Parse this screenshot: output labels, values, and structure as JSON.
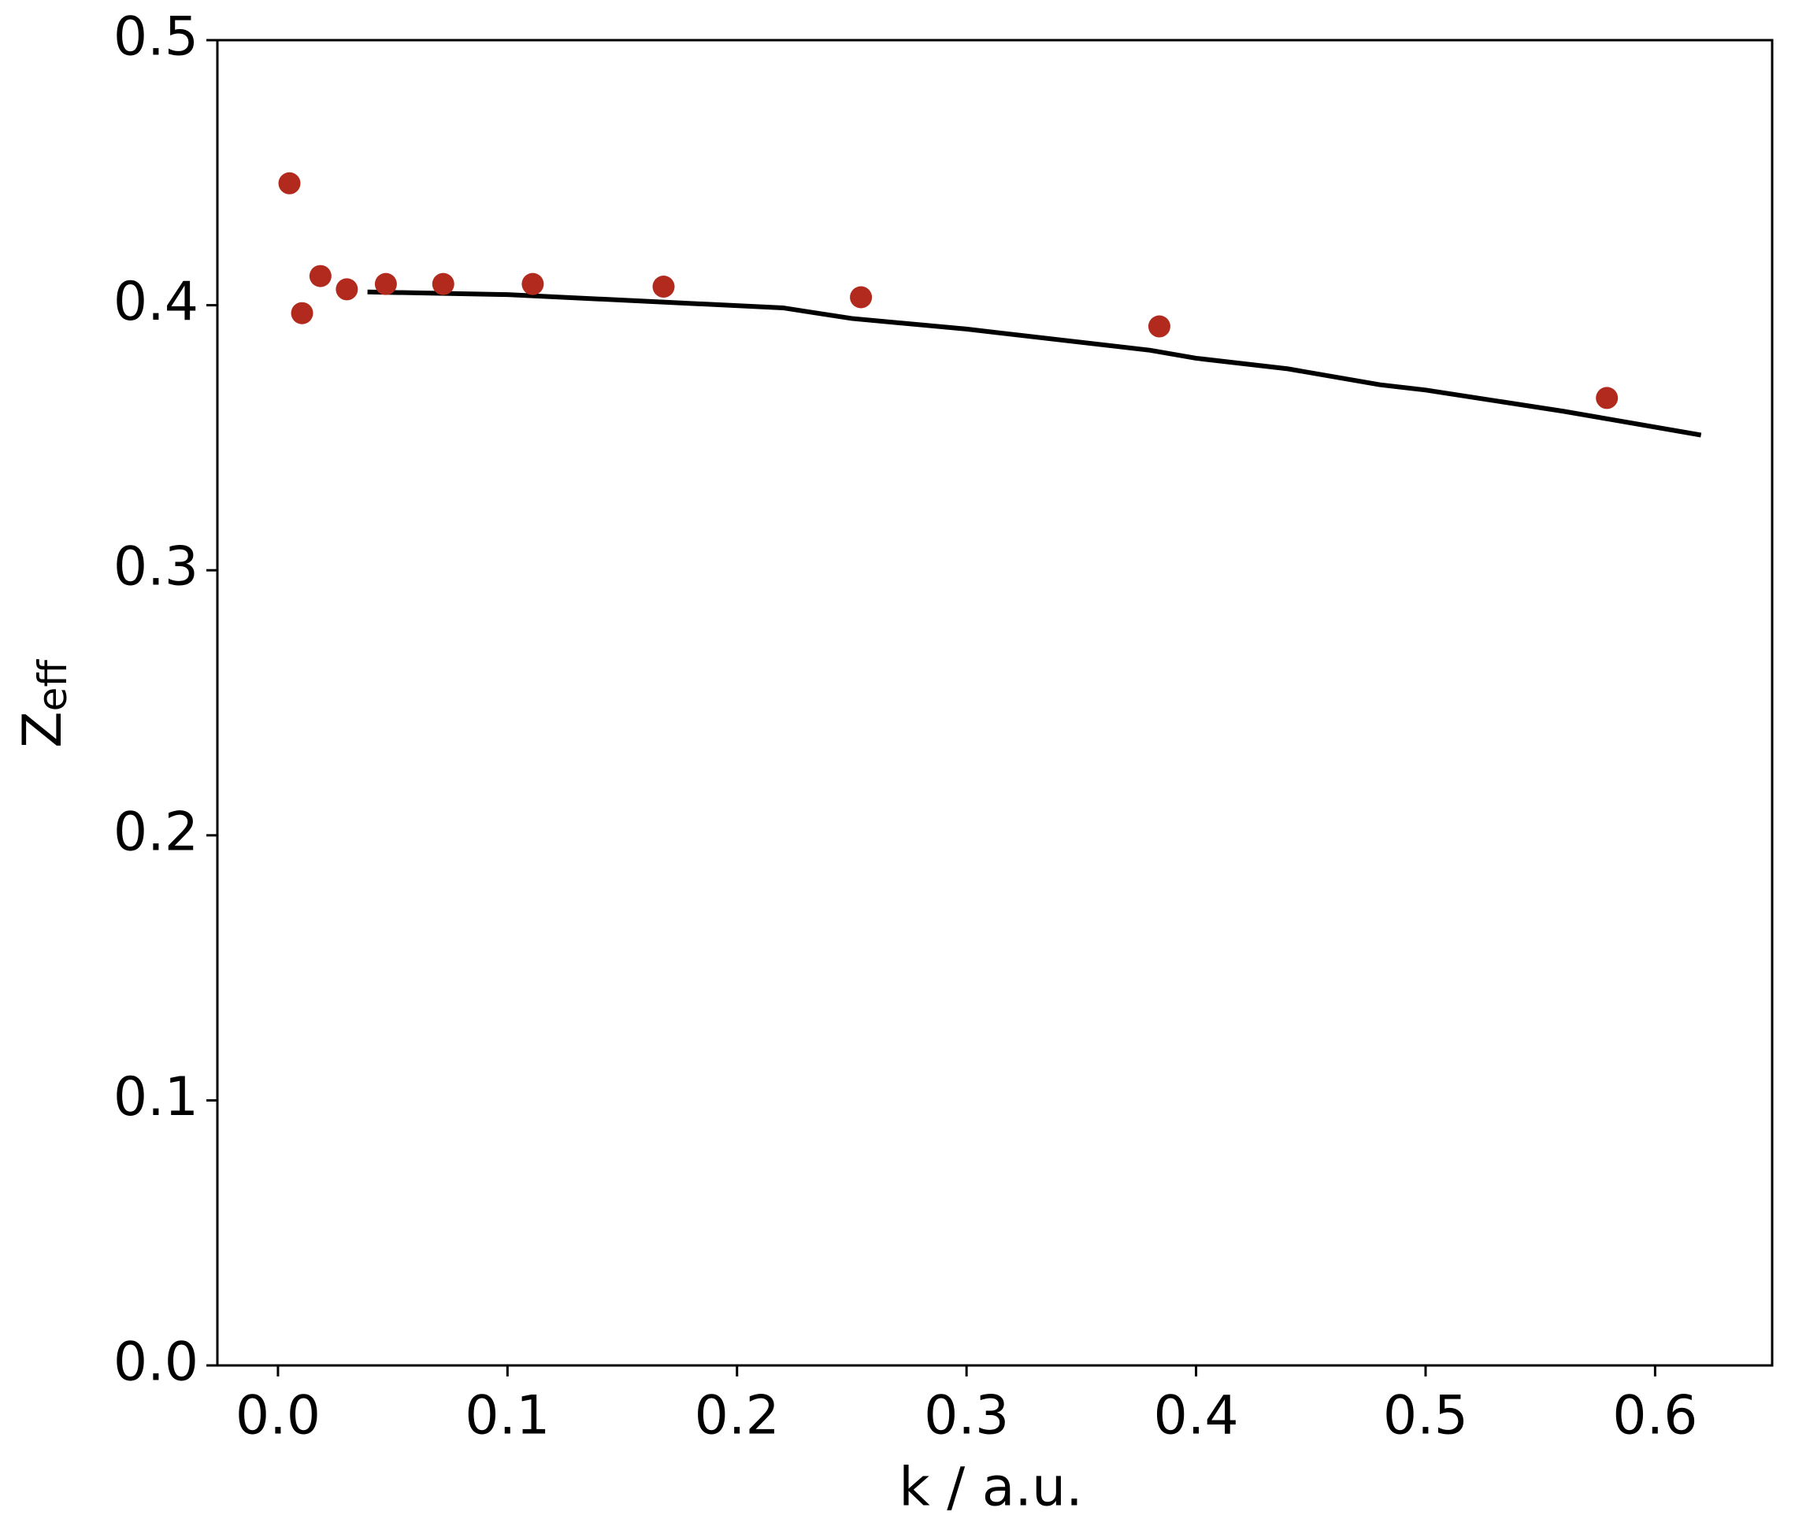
{
  "chart_data": {
    "type": "scatter",
    "xlabel": "k / a.u.",
    "ylabel": "Z",
    "ylabel_sub": "eff",
    "xlim": [
      -0.0264,
      0.651
    ],
    "ylim": [
      0,
      0.5
    ],
    "xticks": [
      {
        "value": 0,
        "label": "0.0"
      },
      0.1,
      0.2,
      0.3,
      0.4,
      0.5,
      0.6
    ],
    "yticks": [
      {
        "value": 0,
        "label": "0.0"
      },
      0.1,
      0.2,
      0.3,
      0.4,
      0.5
    ],
    "points": {
      "color": "#b22a1e",
      "x": [
        0.005,
        0.0105,
        0.0185,
        0.03,
        0.047,
        0.072,
        0.111,
        0.168,
        0.254,
        0.384,
        0.579
      ],
      "y": [
        0.446,
        0.397,
        0.411,
        0.406,
        0.408,
        0.408,
        0.408,
        0.407,
        0.403,
        0.392,
        0.365
      ]
    },
    "line": {
      "color": "#000000",
      "x": [
        0.039,
        0.1,
        0.22,
        0.25,
        0.3,
        0.38,
        0.4,
        0.44,
        0.48,
        0.5,
        0.56,
        0.58,
        0.62
      ],
      "y": [
        0.405,
        0.404,
        0.399,
        0.395,
        0.391,
        0.383,
        0.38,
        0.376,
        0.37,
        0.368,
        0.36,
        0.357,
        0.351
      ]
    }
  }
}
